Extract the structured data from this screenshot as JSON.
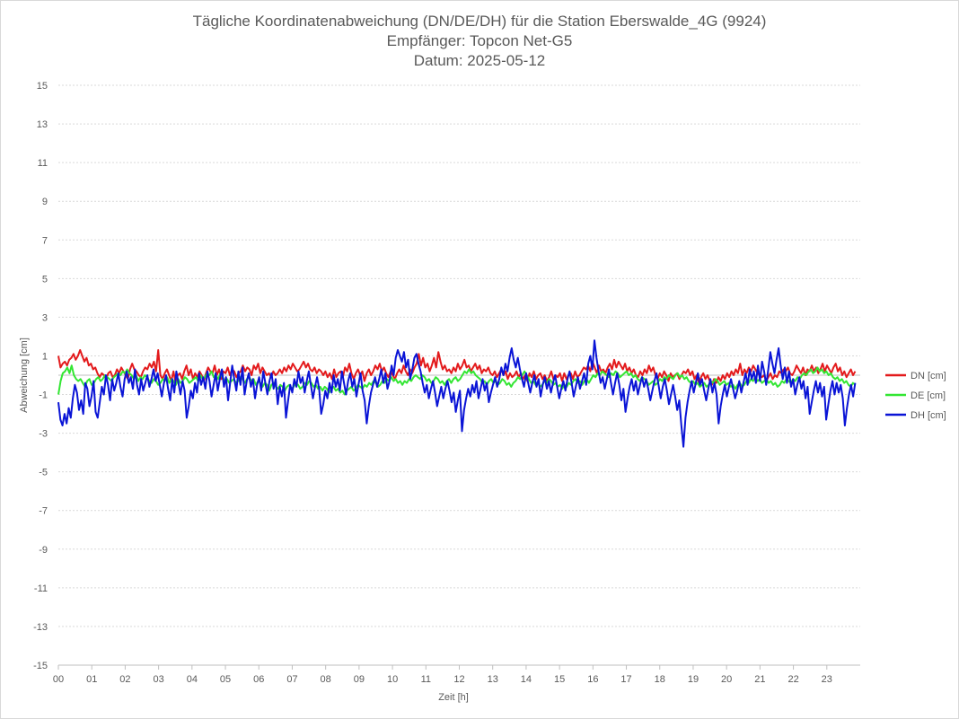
{
  "chart_data": {
    "type": "line",
    "title_lines": [
      "Tägliche Koordinatenabweichung (DN/DE/DH) für die Station Eberswalde_4G (9924)",
      "Empfänger: Topcon Net-G5",
      "Datum: 2025-05-12"
    ],
    "xlabel": "Zeit [h]",
    "ylabel": "Abweichung [cm]",
    "ylim": [
      -15,
      15
    ],
    "yticks": [
      "15",
      "13",
      "11",
      "9",
      "7",
      "5",
      "3",
      "1",
      "-1",
      "-3",
      "-5",
      "-7",
      "-9",
      "-11",
      "-13",
      "-15"
    ],
    "xlim": [
      0,
      24
    ],
    "xticks": [
      "00",
      "01",
      "02",
      "03",
      "04",
      "05",
      "06",
      "07",
      "08",
      "09",
      "10",
      "11",
      "12",
      "13",
      "14",
      "15",
      "16",
      "17",
      "18",
      "19",
      "20",
      "21",
      "22",
      "23"
    ],
    "grid": true,
    "legend_position": "right",
    "series": [
      {
        "name": "DN [cm]",
        "color": "#e31a1c",
        "values": [
          1.0,
          0.4,
          0.6,
          0.7,
          0.5,
          0.8,
          0.9,
          1.1,
          0.8,
          1.0,
          1.3,
          1.0,
          0.7,
          0.9,
          0.5,
          0.6,
          0.3,
          0.4,
          0.1,
          -0.1,
          0.1,
          0.0,
          -0.2,
          0.1,
          0.2,
          -0.1,
          0.0,
          0.3,
          0.1,
          0.4,
          0.2,
          0.0,
          -0.2,
          0.3,
          0.6,
          0.3,
          0.2,
          0.0,
          -0.1,
          0.2,
          0.4,
          0.3,
          0.6,
          0.4,
          0.7,
          0.2,
          1.3,
          0.0,
          -0.2,
          0.1,
          0.3,
          0.0,
          -0.3,
          0.2,
          -0.4,
          0.0,
          0.1,
          -0.2,
          0.2,
          0.5,
          0.0,
          0.3,
          -0.2,
          0.1,
          -0.1,
          0.2,
          0.0,
          -0.3,
          0.1,
          0.4,
          0.2,
          0.1,
          0.5,
          0.0,
          0.3,
          -0.2,
          0.2,
          0.1,
          0.4,
          0.0,
          0.3,
          0.2,
          -0.1,
          0.1,
          0.2,
          0.5,
          0.2,
          0.4,
          0.3,
          0.0,
          0.5,
          0.3,
          0.6,
          0.1,
          0.4,
          0.2,
          0.0,
          0.1,
          -0.1,
          0.2,
          0.0,
          0.1,
          0.3,
          0.1,
          0.4,
          0.2,
          0.5,
          0.3,
          0.6,
          0.4,
          0.2,
          0.3,
          0.5,
          0.7,
          0.4,
          0.6,
          0.3,
          0.2,
          0.4,
          0.1,
          0.3,
          0.2,
          0.0,
          0.2,
          -0.1,
          0.1,
          -0.2,
          0.3,
          -0.1,
          0.1,
          0.2,
          -0.1,
          0.4,
          0.2,
          0.6,
          0.1,
          -0.2,
          0.1,
          0.3,
          0.0,
          0.2,
          -0.3,
          0.1,
          0.3,
          0.0,
          0.2,
          0.5,
          0.3,
          0.6,
          0.2,
          0.4,
          0.1,
          -0.1,
          0.2,
          0.0,
          -0.2,
          0.1,
          0.3,
          0.1,
          0.5,
          0.2,
          0.0,
          0.3,
          0.1,
          0.4,
          0.6,
          1.1,
          0.5,
          0.9,
          0.4,
          0.6,
          0.2,
          0.5,
          0.9,
          0.4,
          1.2,
          0.7,
          0.3,
          0.5,
          0.2,
          0.3,
          0.1,
          0.4,
          0.2,
          0.6,
          0.3,
          0.5,
          0.8,
          0.4,
          0.5,
          0.2,
          0.4,
          0.6,
          0.3,
          0.5,
          0.1,
          0.3,
          0.2,
          0.4,
          0.1,
          0.0,
          0.2,
          -0.1,
          0.1,
          0.3,
          0.0,
          0.2,
          -0.2,
          0.1,
          -0.1,
          0.0,
          0.2,
          -0.1,
          0.1,
          -0.2,
          0.0,
          -0.3,
          0.1,
          -0.1,
          0.2,
          -0.2,
          0.0,
          0.1,
          -0.2,
          0.0,
          -0.3,
          -0.1,
          0.2,
          -0.2,
          0.0,
          -0.1,
          0.1,
          -0.3,
          0.1,
          -0.2,
          0.0,
          0.1,
          -0.2,
          0.2,
          -0.1,
          0.0,
          0.2,
          0.4,
          0.3,
          0.5,
          0.2,
          0.7,
          0.4,
          0.1,
          0.5,
          0.2,
          0.3,
          0.1,
          0.4,
          0.6,
          0.3,
          0.8,
          0.4,
          0.7,
          0.5,
          0.3,
          0.6,
          0.2,
          0.4,
          0.1,
          0.3,
          0.0,
          -0.1,
          0.2,
          0.0,
          0.3,
          0.1,
          0.5,
          0.2,
          0.4,
          0.0,
          -0.2,
          0.1,
          -0.1,
          0.2,
          0.0,
          -0.3,
          0.1,
          -0.1,
          0.0,
          0.1,
          -0.2,
          0.0,
          0.2,
          0.1,
          0.3,
          0.0,
          0.2,
          -0.2,
          0.0,
          -0.4,
          -0.1,
          0.1,
          -0.2,
          0.0,
          -0.3,
          -0.5,
          -0.2,
          -0.4,
          -0.1,
          -0.3,
          0.0,
          -0.2,
          0.1,
          -0.1,
          0.2,
          0.0,
          0.3,
          0.1,
          0.6,
          0.0,
          0.3,
          0.1,
          0.4,
          0.2,
          0.5,
          0.3,
          0.1,
          0.0,
          -0.1,
          0.0,
          -0.3,
          -0.1,
          0.1,
          -0.2,
          0.0,
          -0.1,
          0.2,
          0.1,
          0.3,
          0.2,
          0.4,
          0.1,
          0.0,
          0.2,
          0.5,
          0.3,
          0.1,
          0.4,
          0.0,
          0.3,
          0.2,
          0.5,
          0.2,
          0.4,
          0.1,
          0.3,
          0.6,
          0.2,
          0.5,
          0.3,
          0.1,
          0.4,
          0.6,
          0.2,
          0.4,
          0.0,
          0.2,
          -0.1,
          0.1,
          0.3,
          0.0,
          0.2
        ]
      },
      {
        "name": "DE [cm]",
        "color": "#33e633",
        "values": [
          -1.0,
          -0.3,
          0.1,
          0.2,
          0.4,
          0.1,
          0.5,
          0.0,
          -0.2,
          -0.3,
          -0.2,
          -0.4,
          -0.6,
          -0.3,
          -0.2,
          -0.5,
          -0.4,
          -0.2,
          -0.1,
          -0.3,
          -0.2,
          0.0,
          -0.1,
          -0.2,
          -0.3,
          -0.1,
          0.0,
          0.1,
          0.0,
          0.2,
          0.1,
          0.3,
          0.1,
          0.0,
          -0.2,
          0.0,
          -0.3,
          -0.1,
          -0.2,
          0.0,
          -0.1,
          -0.3,
          -0.4,
          -0.2,
          -0.3,
          -0.5,
          -0.4,
          -0.2,
          -0.3,
          -0.1,
          -0.4,
          -0.2,
          -0.3,
          -0.5,
          -0.2,
          -0.4,
          -0.3,
          -0.1,
          -0.2,
          -0.4,
          -0.3,
          -0.2,
          -0.1,
          -0.3,
          0.0,
          -0.2,
          -0.1,
          0.1,
          0.0,
          0.2,
          -0.1,
          0.0,
          -0.2,
          0.1,
          -0.1,
          -0.3,
          -0.2,
          -0.4,
          -0.3,
          -0.2,
          -0.4,
          -0.3,
          -0.1,
          -0.2,
          -0.4,
          -0.2,
          -0.1,
          -0.3,
          -0.2,
          -0.5,
          -0.3,
          -0.4,
          -0.6,
          -0.4,
          -0.5,
          -0.8,
          -0.5,
          -0.4,
          -0.6,
          -0.7,
          -0.5,
          -0.6,
          -0.8,
          -0.6,
          -0.5,
          -0.7,
          -0.6,
          -0.4,
          -0.5,
          -0.7,
          -0.6,
          -0.4,
          -0.5,
          -0.3,
          -0.4,
          -0.6,
          -0.5,
          -0.7,
          -0.6,
          -0.8,
          -0.6,
          -0.7,
          -0.9,
          -0.7,
          -0.6,
          -0.8,
          -0.7,
          -0.9,
          -0.8,
          -1.0,
          -0.8,
          -0.7,
          -0.6,
          -0.8,
          -0.7,
          -0.5,
          -0.6,
          -0.7,
          -0.5,
          -0.6,
          -0.4,
          -0.5,
          -0.3,
          -0.4,
          -0.6,
          -0.5,
          -0.3,
          -0.4,
          -0.2,
          -0.3,
          -0.1,
          -0.3,
          -0.2,
          -0.4,
          -0.3,
          -0.5,
          -0.3,
          -0.4,
          -0.2,
          -0.3,
          -0.1,
          0.0,
          -0.1,
          -0.2,
          0.0,
          -0.1,
          -0.3,
          -0.2,
          -0.4,
          -0.3,
          -0.1,
          -0.2,
          -0.4,
          -0.3,
          -0.5,
          -0.3,
          -0.2,
          -0.4,
          -0.2,
          -0.1,
          -0.3,
          -0.2,
          0.0,
          0.2,
          0.1,
          0.3,
          0.1,
          0.2,
          0.0,
          -0.1,
          -0.2,
          -0.4,
          -0.3,
          -0.5,
          -0.3,
          -0.2,
          -0.4,
          -0.3,
          -0.5,
          -0.4,
          -0.2,
          -0.3,
          -0.5,
          -0.4,
          -0.6,
          -0.4,
          -0.3,
          -0.1,
          -0.2,
          0.0,
          0.2,
          0.0,
          -0.2,
          -0.4,
          -0.3,
          -0.5,
          -0.4,
          -0.6,
          -0.5,
          -0.3,
          -0.4,
          -0.2,
          -0.3,
          -0.5,
          -0.4,
          -0.6,
          -0.5,
          -0.7,
          -0.5,
          -0.6,
          -0.4,
          -0.5,
          -0.3,
          -0.2,
          -0.4,
          -0.3,
          -0.5,
          -0.3,
          -0.2,
          -0.4,
          -0.2,
          0.0,
          -0.1,
          0.1,
          0.0,
          0.2,
          0.1,
          0.0,
          -0.1,
          0.1,
          0.0,
          0.2,
          0.1,
          -0.1,
          0.0,
          0.1,
          0.2,
          0.0,
          0.1,
          -0.1,
          0.0,
          -0.2,
          -0.3,
          -0.1,
          -0.2,
          -0.3,
          -0.5,
          -0.4,
          -0.3,
          -0.5,
          -0.4,
          -0.2,
          -0.3,
          -0.1,
          -0.2,
          0.0,
          -0.1,
          -0.2,
          0.0,
          0.1,
          -0.1,
          0.0,
          -0.2,
          -0.1,
          -0.3,
          -0.4,
          -0.3,
          -0.5,
          -0.4,
          -0.6,
          -0.5,
          -0.4,
          -0.6,
          -0.5,
          -0.3,
          -0.4,
          -0.2,
          -0.3,
          -0.5,
          -0.4,
          -0.3,
          -0.5,
          -0.4,
          -0.6,
          -0.5,
          -0.7,
          -0.5,
          -0.4,
          -0.6,
          -0.5,
          -0.3,
          -0.4,
          -0.2,
          -0.3,
          -0.1,
          -0.3,
          -0.2,
          -0.4,
          -0.3,
          -0.2,
          -0.4,
          -0.3,
          -0.5,
          -0.4,
          -0.6,
          -0.5,
          -0.3,
          -0.4,
          -0.2,
          -0.3,
          -0.4,
          -0.2,
          -0.3,
          -0.1,
          -0.2,
          0.0,
          0.1,
          0.0,
          0.2,
          0.3,
          0.1,
          0.2,
          0.4,
          0.2,
          0.3,
          0.1,
          0.2,
          0.0,
          0.1,
          -0.1,
          -0.2,
          -0.1,
          -0.3,
          -0.2,
          -0.4,
          -0.3,
          -0.5,
          -0.6,
          -0.4,
          -0.5
        ]
      },
      {
        "name": "DH [cm]",
        "color": "#0a14d6",
        "values": [
          -1.4,
          -2.3,
          -2.6,
          -2.0,
          -2.5,
          -1.7,
          -2.2,
          -1.2,
          -0.5,
          -0.9,
          -1.8,
          -1.3,
          -2.0,
          -0.4,
          -0.7,
          -1.6,
          -1.1,
          -0.3,
          -1.9,
          -2.2,
          -1.4,
          -0.6,
          -1.0,
          0.0,
          -0.5,
          -1.3,
          -0.2,
          -0.8,
          -0.4,
          0.1,
          -0.6,
          -1.1,
          -0.2,
          0.2,
          -0.4,
          -0.1,
          -0.7,
          0.3,
          -0.5,
          -1.0,
          -0.2,
          -0.8,
          -0.4,
          0.0,
          -0.6,
          -0.2,
          0.3,
          -0.3,
          0.1,
          -0.5,
          -1.1,
          -0.4,
          0.0,
          -0.7,
          -1.3,
          -0.2,
          -0.9,
          0.2,
          -0.4,
          -1.0,
          -0.3,
          -0.8,
          -2.2,
          -1.6,
          -0.8,
          -1.2,
          -0.4,
          -0.9,
          0.1,
          -0.5,
          -0.1,
          -0.7,
          0.2,
          -0.3,
          -1.1,
          -0.5,
          0.1,
          -0.8,
          -0.2,
          0.3,
          -0.6,
          -0.1,
          -1.3,
          -0.4,
          0.5,
          -0.2,
          -0.8,
          0.2,
          -0.5,
          0.4,
          -1.0,
          -0.3,
          0.1,
          -0.6,
          -0.2,
          -1.2,
          -0.5,
          -0.1,
          -0.8,
          0.2,
          -0.4,
          -1.0,
          -0.3,
          0.1,
          -0.7,
          -0.2,
          -1.5,
          -0.6,
          -1.1,
          -0.4,
          -2.2,
          -1.3,
          -0.5,
          -0.9,
          -0.2,
          -0.6,
          0.2,
          -0.4,
          -0.1,
          -0.9,
          -0.3,
          0.2,
          -0.5,
          -1.2,
          -0.6,
          -0.1,
          -0.7,
          -2.0,
          -1.5,
          -0.8,
          -1.2,
          -0.4,
          -0.9,
          0.0,
          -0.6,
          -0.2,
          -0.8,
          0.2,
          -0.4,
          -1.0,
          -0.3,
          0.1,
          -0.6,
          -0.2,
          -1.1,
          -0.5,
          0.1,
          -0.8,
          -1.3,
          -2.5,
          -1.6,
          -0.9,
          -0.5,
          -0.1,
          -0.6,
          -0.2,
          0.3,
          -0.4,
          0.1,
          -0.7,
          -0.3,
          0.5,
          0.0,
          0.9,
          1.3,
          1.0,
          0.7,
          1.2,
          0.4,
          0.8,
          -0.2,
          0.3,
          0.9,
          1.1,
          0.6,
          0.2,
          -0.4,
          -0.9,
          -0.5,
          -1.2,
          -0.7,
          -0.3,
          -0.9,
          -1.6,
          -1.1,
          -0.6,
          -1.2,
          -0.7,
          -0.3,
          -0.8,
          -1.4,
          -0.9,
          -1.9,
          -1.3,
          -0.8,
          -2.9,
          -1.8,
          -1.2,
          -0.7,
          -1.1,
          -0.5,
          -0.9,
          -0.3,
          -1.2,
          -0.7,
          -0.2,
          -0.8,
          -0.4,
          -1.4,
          -0.9,
          -0.5,
          -0.1,
          -0.6,
          -0.2,
          0.4,
          0.0,
          0.6,
          0.2,
          0.9,
          1.4,
          0.8,
          0.4,
          0.9,
          0.3,
          -0.2,
          -0.6,
          0.1,
          -0.4,
          -0.9,
          -0.4,
          0.0,
          -0.6,
          -0.2,
          -1.1,
          -0.5,
          -0.1,
          -0.7,
          -0.3,
          -0.9,
          -0.4,
          0.0,
          -0.6,
          -1.2,
          -0.7,
          -0.3,
          -0.8,
          -0.2,
          0.2,
          -0.4,
          -1.1,
          -0.6,
          -0.1,
          -0.7,
          -0.3,
          0.1,
          -0.5,
          0.6,
          1.0,
          0.3,
          1.8,
          0.9,
          0.2,
          -0.4,
          -0.1,
          -0.7,
          -0.2,
          0.3,
          -0.4,
          -1.0,
          -0.4,
          0.1,
          -0.5,
          -1.3,
          -0.7,
          -1.9,
          -1.2,
          -0.6,
          -0.2,
          -0.8,
          -0.3,
          -1.0,
          -0.5,
          -0.1,
          -0.6,
          -0.2,
          -0.7,
          -1.3,
          -0.8,
          -0.3,
          0.1,
          -0.5,
          -1.2,
          -0.6,
          -0.2,
          -0.8,
          -1.5,
          -1.0,
          -0.5,
          -1.1,
          -1.8,
          -1.3,
          -2.6,
          -3.7,
          -2.2,
          -1.4,
          -0.8,
          -0.3,
          -0.9,
          -0.4,
          0.1,
          -0.5,
          -0.2,
          -0.8,
          -1.3,
          -0.7,
          -0.2,
          -0.9,
          -0.4,
          -1.0,
          -2.5,
          -1.6,
          -1.0,
          -0.5,
          -1.1,
          -0.6,
          -0.2,
          -0.7,
          -1.2,
          -0.8,
          -0.3,
          -0.9,
          -0.4,
          0.1,
          -0.5,
          0.3,
          -0.2,
          0.2,
          -0.4,
          0.5,
          -0.3,
          0.7,
          0.2,
          -0.5,
          0.3,
          1.2,
          0.6,
          0.1,
          0.8,
          1.4,
          0.5,
          -0.2,
          0.4,
          -0.4,
          0.2,
          -0.6,
          -0.2,
          -1.0,
          -0.5,
          -0.1,
          -0.7,
          -0.3,
          -1.2,
          -0.6,
          -2.0,
          -1.4,
          -0.8,
          -0.3,
          -0.9,
          -0.4,
          -1.1,
          -0.6,
          -2.3,
          -1.5,
          -0.8,
          -0.3,
          -1.0,
          -0.4,
          -0.9,
          -0.5,
          -1.2,
          -2.6,
          -1.7,
          -1.0,
          -0.5,
          -1.1,
          -0.4
        ]
      }
    ]
  }
}
